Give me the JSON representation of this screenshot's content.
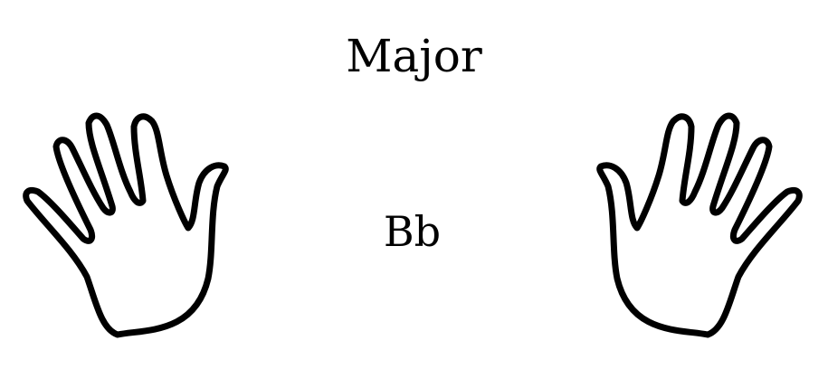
{
  "title": "Major",
  "key_label": "Bb",
  "hands": {
    "left": {
      "icon": "left-hand-outline-icon"
    },
    "right": {
      "icon": "right-hand-outline-icon"
    }
  },
  "colors": {
    "background": "#ffffff",
    "ink": "#000000"
  }
}
